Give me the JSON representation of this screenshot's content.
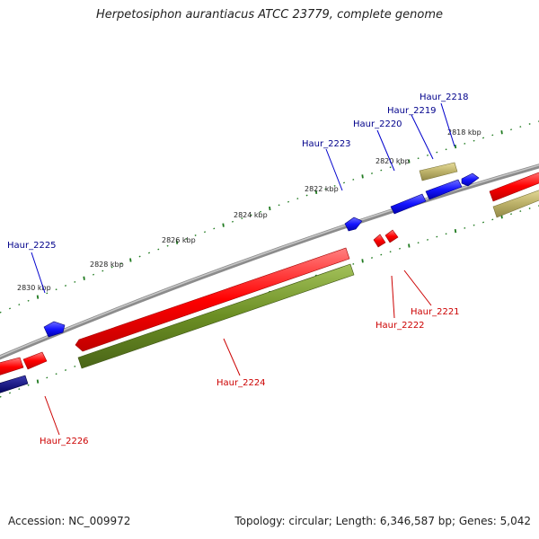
{
  "title": "Herpetosiphon aurantiacus ATCC 23779, complete genome",
  "footer": {
    "accession": "Accession: NC_009972",
    "summary": "Topology: circular; Length: 6,346,587 bp; Genes: 5,042"
  },
  "colors": {
    "backbone": "#8a8a8a",
    "forward_gene": "#ff1a1a",
    "reverse_gene": "#1a1aff",
    "forward_cds_track": "#6b8e23",
    "reverse_cds_track": "#c2b76a",
    "dark_gene": "#00006b",
    "tick": "#1f7a1f"
  },
  "scale_labels": [
    "2818 kbp",
    "2820 kbp",
    "2822 kbp",
    "2824 kbp",
    "2826 kbp",
    "2828 kbp",
    "2830 kbp"
  ],
  "genes_top": [
    {
      "label": "Haur_2218",
      "color": "#00008b"
    },
    {
      "label": "Haur_2219",
      "color": "#00008b"
    },
    {
      "label": "Haur_2220",
      "color": "#00008b"
    },
    {
      "label": "Haur_2223",
      "color": "#00008b"
    },
    {
      "label": "Haur_2225",
      "color": "#00008b"
    }
  ],
  "genes_bottom": [
    {
      "label": "Haur_2221",
      "color": "#cc0000"
    },
    {
      "label": "Haur_2222",
      "color": "#cc0000"
    },
    {
      "label": "Haur_2224",
      "color": "#cc0000"
    },
    {
      "label": "Haur_2226",
      "color": "#cc0000"
    }
  ]
}
